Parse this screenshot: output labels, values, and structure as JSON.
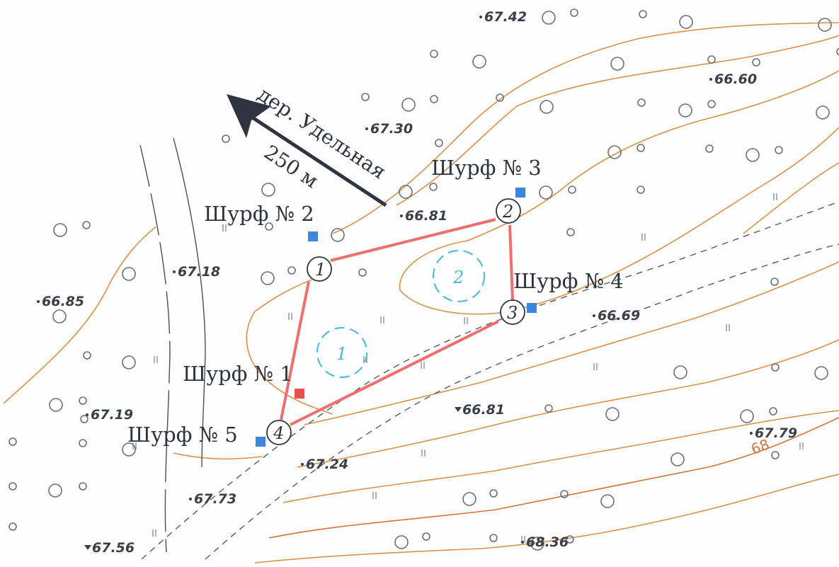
{
  "colors": {
    "contour": "#d9914a",
    "contour_index": "#d2743a",
    "route": "#ef6f6f",
    "pit_marker": "#3d86de",
    "pit_marker_active": "#e85050",
    "zone_circle": "#4ab5e0",
    "arrow": "#2f3440",
    "road": "#555a63"
  },
  "direction_arrow": {
    "village": "дер. Удельная",
    "distance": "250 м"
  },
  "pits": [
    {
      "label": "Шурф № 1"
    },
    {
      "label": "Шурф № 2"
    },
    {
      "label": "Шурф № 3"
    },
    {
      "label": "Шурф № 4"
    },
    {
      "label": "Шурф № 5"
    }
  ],
  "route_nodes": [
    "1",
    "2",
    "3",
    "4"
  ],
  "zones": [
    "1",
    "2"
  ],
  "contour_label": "68",
  "elevations": [
    {
      "value": "67.42",
      "marker": "dot"
    },
    {
      "value": "66.60",
      "marker": "dot"
    },
    {
      "value": "67.30",
      "marker": "dot"
    },
    {
      "value": "66.81",
      "marker": "dot"
    },
    {
      "value": "67.18",
      "marker": "dot"
    },
    {
      "value": "66.85",
      "marker": "dot"
    },
    {
      "value": "66.69",
      "marker": "dot"
    },
    {
      "value": "66.81",
      "marker": "triangle"
    },
    {
      "value": "67.19",
      "marker": "dot"
    },
    {
      "value": "67.79",
      "marker": "dot"
    },
    {
      "value": "67.24",
      "marker": "dot"
    },
    {
      "value": "67.73",
      "marker": "dot"
    },
    {
      "value": "67.56",
      "marker": "triangle"
    },
    {
      "value": "68.36",
      "marker": "dot"
    }
  ]
}
